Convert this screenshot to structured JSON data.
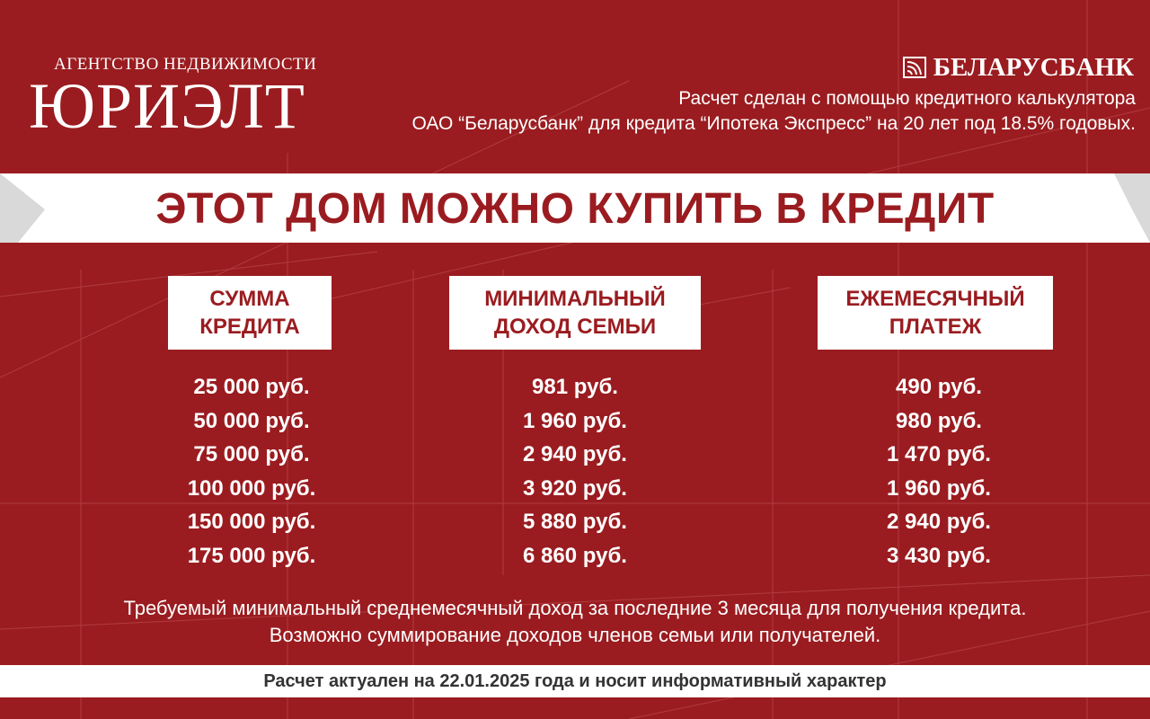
{
  "brand": {
    "agency_subtitle": "АГЕНТСТВО НЕДВИЖИМОСТИ",
    "agency_name": "ЮРИЭЛТ",
    "bank_name": "БЕЛАРУСБАНК"
  },
  "calc_note": {
    "line1": "Расчет сделан с помощью кредитного калькулятора",
    "line2": "ОАО “Беларусбанк” для кредита “Ипотека Экспресс” на 20 лет под 18.5% годовых."
  },
  "banner_title": "ЭТОТ ДОМ МОЖНО КУПИТЬ В КРЕДИТ",
  "table": {
    "headers": [
      {
        "line1": "СУММА",
        "line2": "КРЕДИТА"
      },
      {
        "line1": "МИНИМАЛЬНЫЙ",
        "line2": "ДОХОД СЕМЬИ"
      },
      {
        "line1": "ЕЖЕМЕСЯЧНЫЙ",
        "line2": "ПЛАТЕЖ"
      }
    ],
    "loan_amounts": [
      "25 000 руб.",
      "50 000 руб.",
      "75 000 руб.",
      "100 000 руб.",
      "150 000 руб.",
      "175 000 руб."
    ],
    "min_income": [
      "981 руб.",
      "1 960 руб.",
      "2 940 руб.",
      "3 920 руб.",
      "5 880 руб.",
      "6 860 руб."
    ],
    "monthly_payment": [
      "490 руб.",
      "980 руб.",
      "1 470 руб.",
      "1 960 руб.",
      "2 940 руб.",
      "3 430 руб."
    ]
  },
  "footnote": {
    "line1": "Требуемый минимальный среднемесячный доход за последние 3 месяца для получения кредита.",
    "line2": "Возможно суммирование доходов членов семьи или получателей."
  },
  "disclaimer": "Расчет актуален на 22.01.2025 года и носит информативный характер",
  "colors": {
    "background": "#9a1c20",
    "accent_text": "#9a1c20",
    "panel": "#ffffff"
  }
}
